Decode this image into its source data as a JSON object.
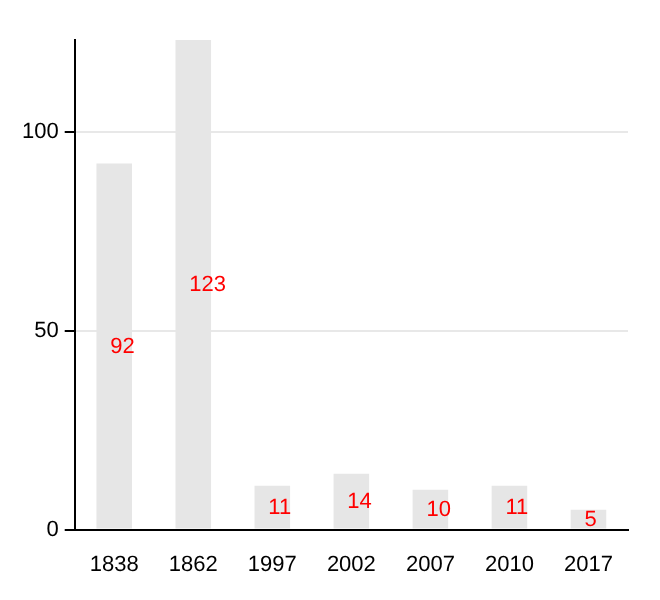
{
  "chart_data": {
    "type": "bar",
    "categories": [
      "1838",
      "1862",
      "1997",
      "2002",
      "2007",
      "2010",
      "2017"
    ],
    "values": [
      92,
      123,
      11,
      14,
      10,
      11,
      5
    ],
    "color": "#e6e6e6",
    "ylim": [
      0,
      123
    ],
    "yticks": [
      0,
      50,
      100
    ],
    "grid": "y",
    "data_labels": true
  }
}
